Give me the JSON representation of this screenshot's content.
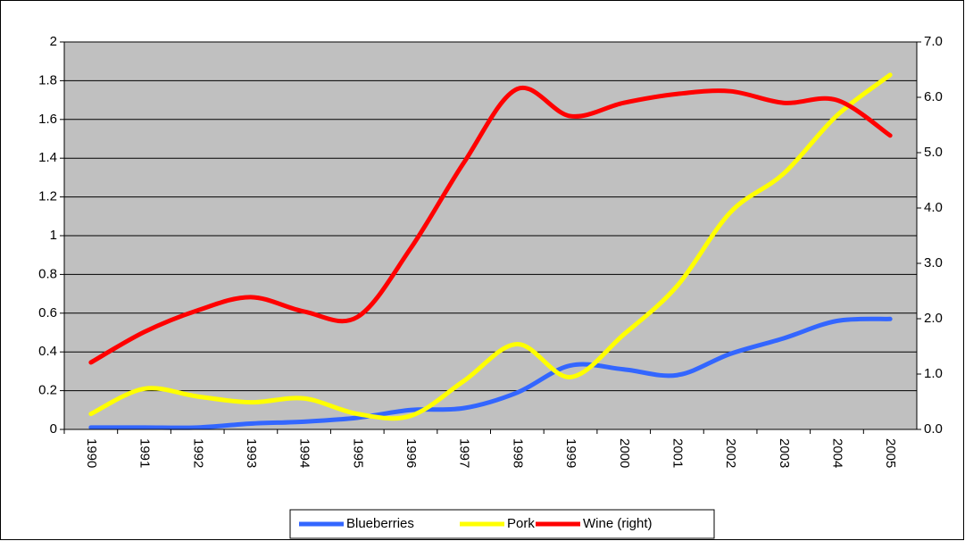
{
  "chart_data": {
    "type": "line",
    "categories": [
      "1990",
      "1991",
      "1992",
      "1993",
      "1994",
      "1995",
      "1996",
      "1997",
      "1998",
      "1999",
      "2000",
      "2001",
      "2002",
      "2003",
      "2004",
      "2005"
    ],
    "series": [
      {
        "name": "Blueberries",
        "color": "#3366ff",
        "values": [
          0.01,
          0.01,
          0.01,
          0.03,
          0.04,
          0.06,
          0.1,
          0.11,
          0.19,
          0.33,
          0.31,
          0.28,
          0.39,
          0.47,
          0.56,
          0.57
        ]
      },
      {
        "name": "Pork",
        "color": "#ffff00",
        "values": [
          0.08,
          0.21,
          0.17,
          0.14,
          0.16,
          0.08,
          0.07,
          0.25,
          0.44,
          0.27,
          0.49,
          0.74,
          1.12,
          1.32,
          1.62,
          1.83
        ]
      },
      {
        "name": "Wine (right)",
        "color": "#ff0000",
        "axis": "y2",
        "values": [
          1.21,
          1.76,
          2.15,
          2.39,
          2.13,
          2.03,
          3.27,
          4.82,
          6.15,
          5.66,
          5.9,
          6.06,
          6.11,
          5.9,
          5.95,
          5.31
        ]
      }
    ],
    "ylim": [
      0,
      2
    ],
    "yticks": [
      0,
      0.2,
      0.4,
      0.6,
      0.8,
      1,
      1.2,
      1.4,
      1.6,
      1.8,
      2
    ],
    "y2lim": [
      0,
      7
    ],
    "y2ticks": [
      {
        "value": 0,
        "label": "0.0"
      },
      {
        "value": 1,
        "label": "1.0"
      },
      {
        "value": 2,
        "label": "2.0"
      },
      {
        "value": 3,
        "label": "3.0"
      },
      {
        "value": 4,
        "label": "4.0"
      },
      {
        "value": 5,
        "label": "5.0"
      },
      {
        "value": 6,
        "label": "6.0"
      },
      {
        "value": 7,
        "label": "7.0"
      }
    ],
    "grid": true,
    "legend": "bottom"
  }
}
